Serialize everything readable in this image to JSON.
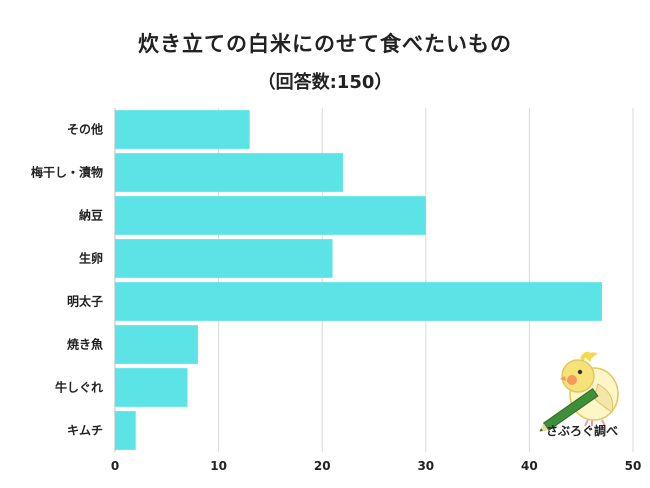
{
  "header": {
    "title": "炊き立ての白米にのせて食べたいもの",
    "subtitle": "（回答数:150）"
  },
  "watermark": {
    "text": "さぶろぐ調べ",
    "icon": "cockatiel-mascot-icon"
  },
  "colors": {
    "bar": "#5be3e6",
    "grid": "#d9d9d9",
    "axis": "#bbbbbb"
  },
  "chart_data": {
    "type": "bar",
    "orientation": "horizontal",
    "title": "炊き立ての白米にのせて食べたいもの",
    "subtitle": "（回答数:150）",
    "categories": [
      "その他",
      "梅干し・漬物",
      "納豆",
      "生卵",
      "明太子",
      "焼き魚",
      "牛しぐれ",
      "キムチ"
    ],
    "values": [
      13,
      22,
      30,
      21,
      47,
      8,
      7,
      2
    ],
    "xlim": [
      0,
      50
    ],
    "xticks": [
      "0",
      "10",
      "20",
      "30",
      "40",
      "50"
    ],
    "xlabel": "",
    "ylabel": "",
    "grid": true
  }
}
